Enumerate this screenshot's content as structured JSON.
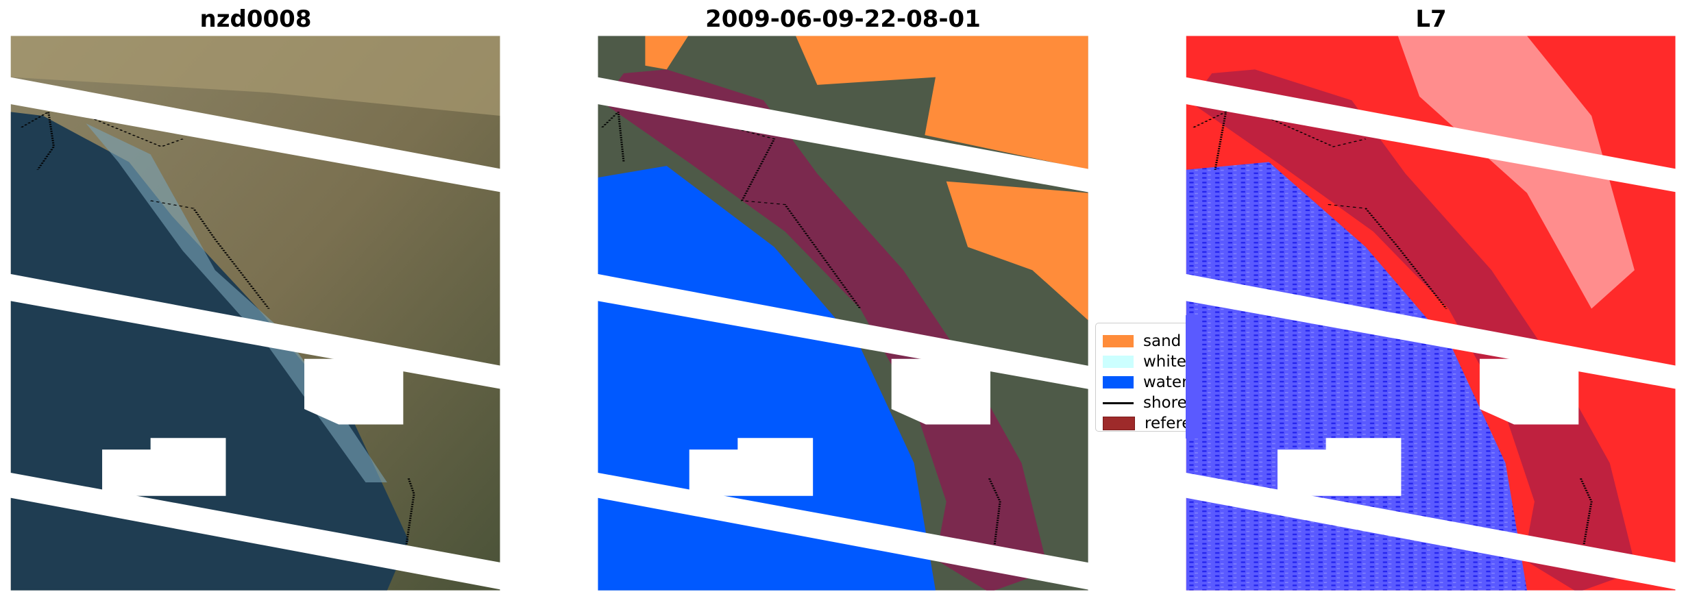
{
  "panels": [
    {
      "title": "nzd0008",
      "kind": "rgb"
    },
    {
      "title": "2009-06-09-22-08-01",
      "kind": "classified"
    },
    {
      "title": "L7",
      "kind": "index"
    }
  ],
  "legend": {
    "items": [
      {
        "label": "sand",
        "color": "#ff8c3a",
        "type": "patch"
      },
      {
        "label": "whitew",
        "color": "#ccffff",
        "type": "patch"
      },
      {
        "label": "water",
        "color": "#0059ff",
        "type": "patch"
      },
      {
        "label": "shorel",
        "color": "#000000",
        "type": "line"
      },
      {
        "label": "referer",
        "color": "#9e2a2a",
        "type": "patch"
      }
    ]
  },
  "colors": {
    "reference_overlay": "#8b1a50",
    "sand": "#ff8c3a",
    "water": "#0059ff",
    "index_high": "#ff2020",
    "index_low": "#3a3aff"
  }
}
